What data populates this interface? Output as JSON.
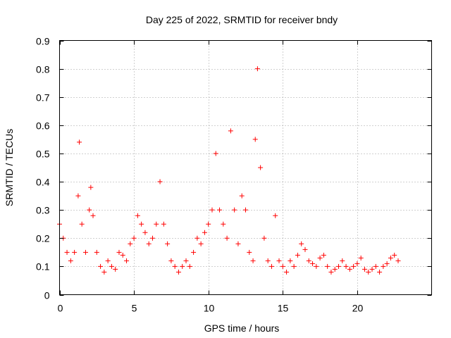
{
  "chart_data": {
    "type": "scatter",
    "title": "Day 225 of 2022, SRMTID for receiver bndy",
    "xlabel": "GPS time / hours",
    "ylabel": "SRMTID / TECUs",
    "xlim": [
      0,
      25
    ],
    "ylim": [
      0,
      0.9
    ],
    "xticks": [
      0,
      5,
      10,
      15,
      20
    ],
    "xtick_labels": [
      "0",
      "5",
      "10",
      "15",
      "20"
    ],
    "yticks": [
      0,
      0.1,
      0.2,
      0.3,
      0.4,
      0.5,
      0.6,
      0.7,
      0.8,
      0.9
    ],
    "ytick_labels": [
      "0",
      "0.1",
      "0.2",
      "0.3",
      "0.4",
      "0.5",
      "0.6",
      "0.7",
      "0.8",
      "0.9"
    ],
    "grid": true,
    "marker": "+",
    "color": "#ff0000",
    "series": [
      {
        "name": "SRMTID",
        "x": [
          0.0,
          0.25,
          0.5,
          0.75,
          1.0,
          1.25,
          1.33,
          1.5,
          1.75,
          2.0,
          2.1,
          2.25,
          2.5,
          2.75,
          3.0,
          3.25,
          3.5,
          3.75,
          4.0,
          4.25,
          4.5,
          4.75,
          5.0,
          5.25,
          5.5,
          5.75,
          6.0,
          6.25,
          6.5,
          6.75,
          7.0,
          7.25,
          7.5,
          7.75,
          8.0,
          8.25,
          8.5,
          8.75,
          9.0,
          9.25,
          9.5,
          9.75,
          10.0,
          10.25,
          10.5,
          10.75,
          11.0,
          11.25,
          11.5,
          11.75,
          12.0,
          12.25,
          12.5,
          12.75,
          13.0,
          13.15,
          13.3,
          13.5,
          13.75,
          14.0,
          14.25,
          14.5,
          14.75,
          15.0,
          15.25,
          15.5,
          15.75,
          16.0,
          16.25,
          16.5,
          16.75,
          17.0,
          17.25,
          17.5,
          17.75,
          18.0,
          18.25,
          18.5,
          18.75,
          19.0,
          19.25,
          19.5,
          19.75,
          20.0,
          20.25,
          20.5,
          20.75,
          21.0,
          21.25,
          21.5,
          21.75,
          22.0,
          22.25,
          22.5,
          22.75
        ],
        "y": [
          0.25,
          0.2,
          0.15,
          0.12,
          0.15,
          0.35,
          0.54,
          0.25,
          0.15,
          0.3,
          0.38,
          0.28,
          0.15,
          0.1,
          0.08,
          0.12,
          0.1,
          0.09,
          0.15,
          0.14,
          0.12,
          0.18,
          0.2,
          0.28,
          0.25,
          0.22,
          0.18,
          0.2,
          0.25,
          0.4,
          0.25,
          0.18,
          0.12,
          0.1,
          0.08,
          0.1,
          0.12,
          0.1,
          0.15,
          0.2,
          0.18,
          0.22,
          0.25,
          0.3,
          0.5,
          0.3,
          0.25,
          0.2,
          0.58,
          0.3,
          0.18,
          0.35,
          0.3,
          0.15,
          0.12,
          0.55,
          0.8,
          0.45,
          0.2,
          0.12,
          0.1,
          0.28,
          0.12,
          0.1,
          0.08,
          0.12,
          0.1,
          0.14,
          0.18,
          0.16,
          0.12,
          0.11,
          0.1,
          0.13,
          0.14,
          0.1,
          0.08,
          0.09,
          0.1,
          0.12,
          0.1,
          0.09,
          0.1,
          0.11,
          0.13,
          0.09,
          0.08,
          0.09,
          0.1,
          0.08,
          0.1,
          0.11,
          0.13,
          0.14,
          0.12
        ]
      }
    ]
  }
}
